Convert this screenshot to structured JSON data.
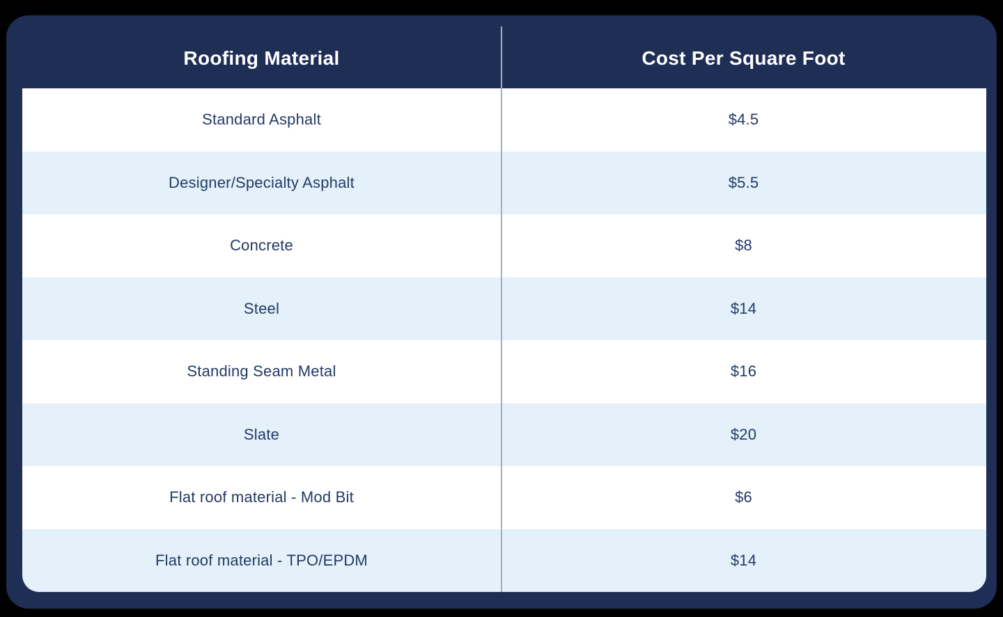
{
  "chart_data": {
    "type": "table",
    "title": "",
    "columns": [
      "Roofing Material",
      "Cost Per Square Foot"
    ],
    "rows": [
      [
        "Standard Asphalt",
        "$4.5"
      ],
      [
        "Designer/Specialty Asphalt",
        "$5.5"
      ],
      [
        "Concrete",
        "$8"
      ],
      [
        "Steel",
        "$14"
      ],
      [
        "Standing Seam Metal",
        "$16"
      ],
      [
        "Slate",
        "$20"
      ],
      [
        "Flat roof material - Mod Bit",
        "$6"
      ],
      [
        "Flat roof material - TPO/EPDM",
        "$14"
      ]
    ],
    "cost_values_numeric": [
      4.5,
      5.5,
      8,
      14,
      16,
      20,
      6,
      14
    ],
    "layout": {
      "striped_rows": true,
      "header_position": "top",
      "column_divider": true
    }
  },
  "colors": {
    "page_background": "#000000",
    "card_navy": "#1e2e55",
    "row_white": "#ffffff",
    "row_alt_blue": "#e4f1fa",
    "divider_line": "#a3aec2",
    "header_text": "#ffffff",
    "row_text": "#233a66"
  }
}
